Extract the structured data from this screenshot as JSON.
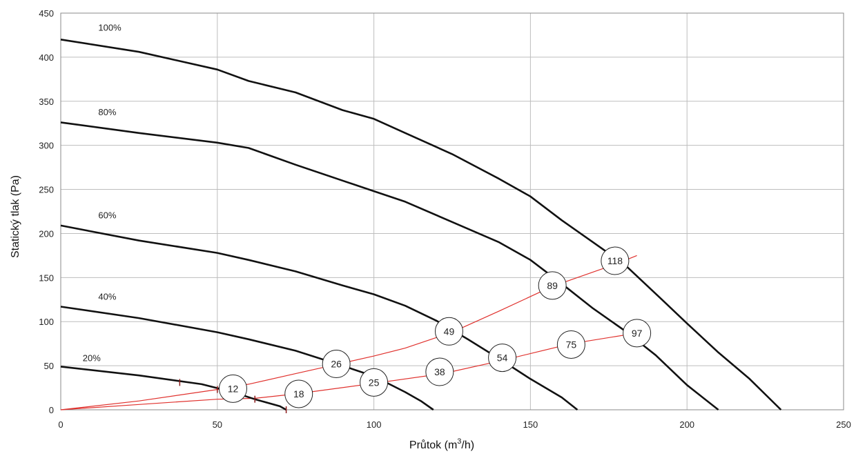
{
  "chart_data": {
    "type": "line",
    "xlabel": "Průtok (m",
    "xlabel_sup": "3",
    "xlabel_end": "/h)",
    "ylabel": "Statický tlak (Pa)",
    "xlim": [
      0,
      250
    ],
    "ylim": [
      0,
      450
    ],
    "x_ticks": [
      0,
      50,
      100,
      150,
      200,
      250
    ],
    "y_ticks": [
      0,
      50,
      100,
      150,
      200,
      250,
      300,
      350,
      400,
      450
    ],
    "grid": true,
    "colors": {
      "curve": "#111111",
      "system": "#e0302c",
      "grid": "#bdbdbd"
    },
    "series": [
      {
        "name": "100%",
        "label_at": [
          12,
          430
        ],
        "points": [
          [
            0,
            420
          ],
          [
            25,
            406
          ],
          [
            50,
            386
          ],
          [
            60,
            373
          ],
          [
            75,
            360
          ],
          [
            90,
            340
          ],
          [
            100,
            330
          ],
          [
            110,
            314
          ],
          [
            125,
            290
          ],
          [
            140,
            262
          ],
          [
            150,
            242
          ],
          [
            160,
            215
          ],
          [
            170,
            190
          ],
          [
            180,
            165
          ],
          [
            192,
            125
          ],
          [
            200,
            98
          ],
          [
            210,
            65
          ],
          [
            220,
            35
          ],
          [
            230,
            0
          ]
        ]
      },
      {
        "name": "80%",
        "label_at": [
          12,
          334
        ],
        "points": [
          [
            0,
            326
          ],
          [
            25,
            314
          ],
          [
            50,
            303
          ],
          [
            60,
            297
          ],
          [
            75,
            278
          ],
          [
            90,
            260
          ],
          [
            100,
            248
          ],
          [
            110,
            236
          ],
          [
            125,
            213
          ],
          [
            140,
            190
          ],
          [
            150,
            170
          ],
          [
            160,
            143
          ],
          [
            170,
            115
          ],
          [
            180,
            90
          ],
          [
            190,
            62
          ],
          [
            200,
            28
          ],
          [
            210,
            0
          ]
        ]
      },
      {
        "name": "60%",
        "label_at": [
          12,
          217
        ],
        "points": [
          [
            0,
            209
          ],
          [
            25,
            192
          ],
          [
            50,
            178
          ],
          [
            60,
            170
          ],
          [
            75,
            157
          ],
          [
            90,
            141
          ],
          [
            100,
            131
          ],
          [
            110,
            118
          ],
          [
            120,
            101
          ],
          [
            130,
            80
          ],
          [
            140,
            58
          ],
          [
            150,
            35
          ],
          [
            160,
            14
          ],
          [
            165,
            0
          ]
        ]
      },
      {
        "name": "40%",
        "label_at": [
          12,
          125
        ],
        "points": [
          [
            0,
            117
          ],
          [
            25,
            104
          ],
          [
            50,
            88
          ],
          [
            60,
            80
          ],
          [
            75,
            67
          ],
          [
            90,
            50
          ],
          [
            100,
            38
          ],
          [
            110,
            20
          ],
          [
            115,
            10
          ],
          [
            119,
            0
          ]
        ]
      },
      {
        "name": "20%",
        "label_at": [
          7,
          55
        ],
        "points": [
          [
            0,
            49
          ],
          [
            25,
            39
          ],
          [
            45,
            29
          ],
          [
            55,
            20
          ],
          [
            62,
            12
          ],
          [
            70,
            4
          ],
          [
            72,
            0
          ]
        ]
      }
    ],
    "system_curves": [
      {
        "points": [
          [
            0,
            0
          ],
          [
            25,
            10
          ],
          [
            50,
            23
          ],
          [
            60,
            29
          ],
          [
            75,
            41
          ],
          [
            90,
            53
          ],
          [
            100,
            61
          ],
          [
            110,
            70
          ],
          [
            125,
            88
          ],
          [
            140,
            112
          ],
          [
            157,
            140
          ],
          [
            177,
            165
          ],
          [
            184,
            175
          ]
        ]
      },
      {
        "points": [
          [
            0,
            0
          ],
          [
            25,
            6
          ],
          [
            50,
            12
          ],
          [
            62,
            13
          ],
          [
            75,
            18
          ],
          [
            100,
            30
          ],
          [
            122,
            41
          ],
          [
            141,
            56
          ],
          [
            163,
            75
          ],
          [
            184,
            87
          ]
        ]
      }
    ],
    "markers": [
      [
        38,
        31
      ],
      [
        50,
        23
      ],
      [
        62,
        12
      ],
      [
        72,
        0
      ]
    ],
    "annotations": [
      {
        "text": "118",
        "x": 177,
        "y": 169
      },
      {
        "text": "89",
        "x": 157,
        "y": 141
      },
      {
        "text": "49",
        "x": 124,
        "y": 89
      },
      {
        "text": "26",
        "x": 88,
        "y": 52
      },
      {
        "text": "12",
        "x": 55,
        "y": 24
      },
      {
        "text": "97",
        "x": 184,
        "y": 87
      },
      {
        "text": "75",
        "x": 163,
        "y": 74
      },
      {
        "text": "54",
        "x": 141,
        "y": 59
      },
      {
        "text": "38",
        "x": 121,
        "y": 43
      },
      {
        "text": "25",
        "x": 100,
        "y": 31
      },
      {
        "text": "18",
        "x": 76,
        "y": 18
      }
    ]
  }
}
